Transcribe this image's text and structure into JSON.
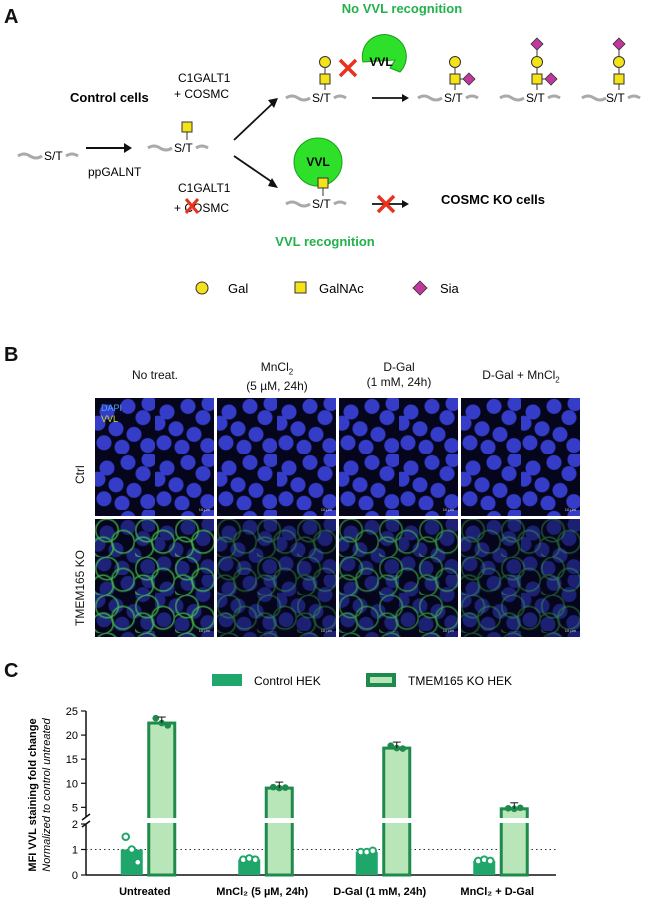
{
  "panelA": {
    "letter": "A",
    "no_vvl_recognition": "No VVL recognition",
    "vvl_recognition": "VVL recognition",
    "control_cells": "Control cells",
    "cosmc_ko_cells": "COSMC KO cells",
    "ppgalnt": "ppGALNT",
    "c1galt1_top": "C1GALT1",
    "cosmc_top": "+ COSMC",
    "c1galt1_bottom": "C1GALT1",
    "cosmc_bottom": "+ COSMC",
    "st_label": "S/T",
    "vvl": "VVL",
    "legend": {
      "gal": "Gal",
      "galnac": "GalNAc",
      "sia": "Sia"
    },
    "colors": {
      "green_text": "#21b24b",
      "vvl_green": "#2ee02a",
      "gal_yellow": "#f5e31a",
      "sia_magenta": "#c2379e",
      "cross_red": "#e8321e"
    }
  },
  "panelB": {
    "letter": "B",
    "columns": [
      {
        "line1": "No treat.",
        "line2": ""
      },
      {
        "line1": "MnCl",
        "sub": "2",
        "line2": "(5 µM, 24h)"
      },
      {
        "line1": "D-Gal",
        "line2": "(1 mM, 24h)"
      },
      {
        "line1": "D-Gal + MnCl",
        "sub": "2",
        "line2": ""
      }
    ],
    "rows": [
      "Ctrl",
      "TMEM165 KO"
    ],
    "overlay_dapi": "DAPI",
    "overlay_vvl": "VVL",
    "scale": "10 µm"
  },
  "panelC": {
    "letter": "C",
    "legend": [
      "Control HEK",
      "TMEM165 KO HEK"
    ],
    "ylabel_line1": "MFI VVL staining fold change",
    "ylabel_line2": "Normalized to control untreated",
    "colors": {
      "control": "#1fa66b",
      "ko_fill": "#b9e6b8",
      "ko_edge": "#1e8a4c"
    }
  },
  "chart_data": {
    "type": "bar",
    "categories": [
      "Untreated",
      "MnCl₂ (5 µM, 24h)",
      "D-Gal (1 mM, 24h)",
      "MnCl₂ + D-Gal"
    ],
    "series": [
      {
        "name": "Control HEK",
        "values": [
          1.0,
          0.6,
          0.9,
          0.55
        ],
        "points": [
          [
            1.5,
            1.0,
            0.5
          ],
          [
            0.6,
            0.65,
            0.6
          ],
          [
            0.9,
            0.9,
            0.95
          ],
          [
            0.55,
            0.6,
            0.55
          ]
        ]
      },
      {
        "name": "TMEM165 KO HEK",
        "values": [
          22.5,
          9.0,
          17.3,
          4.7
        ],
        "points": [
          [
            23.5,
            22.5,
            22.0
          ],
          [
            9.2,
            9.0,
            9.1
          ],
          [
            17.8,
            17.3,
            17.2
          ],
          [
            4.8,
            4.7,
            4.9
          ]
        ]
      }
    ],
    "ylabel": "MFI VVL staining fold change",
    "y_ticks_lower": [
      0,
      1,
      2
    ],
    "y_ticks_upper": [
      5,
      10,
      15,
      20,
      25
    ],
    "axis_break": [
      2,
      3
    ],
    "reference_line": 1,
    "ylim": [
      0,
      25
    ]
  }
}
